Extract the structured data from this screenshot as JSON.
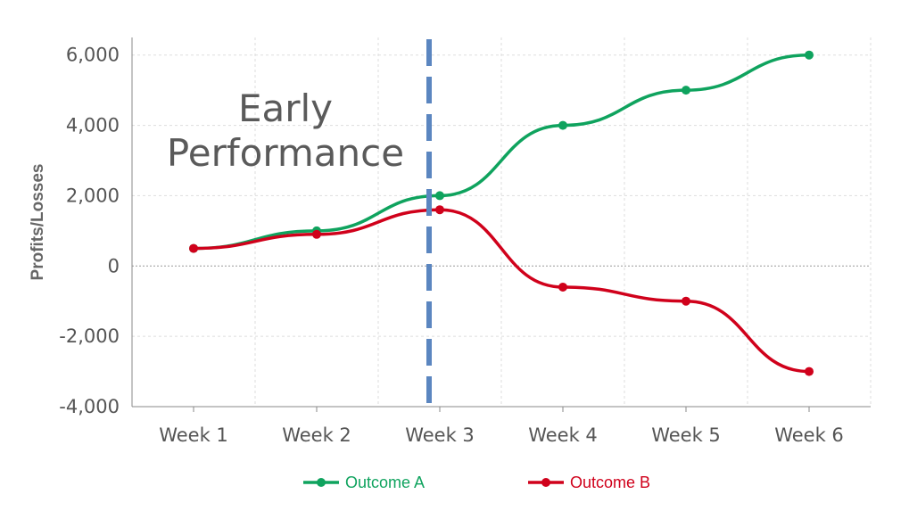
{
  "chart_data": {
    "type": "line",
    "categories": [
      "Week 1",
      "Week 2",
      "Week 3",
      "Week 4",
      "Week 5",
      "Week 6"
    ],
    "series": [
      {
        "name": "Outcome A",
        "color": "#0fa35e",
        "values": [
          500,
          1000,
          2000,
          4000,
          5000,
          6000
        ]
      },
      {
        "name": "Outcome B",
        "color": "#d0011b",
        "values": [
          500,
          900,
          1600,
          -600,
          -1000,
          -3000
        ]
      }
    ],
    "ylabel": "Profits/Losses",
    "ylim": [
      -4000,
      6500
    ],
    "yticks": [
      -4000,
      -2000,
      0,
      2000,
      4000,
      6000
    ],
    "ytick_labels": [
      "-4,000",
      "-2,000",
      "0",
      "2,000",
      "4,000",
      "6,000"
    ],
    "grid": true,
    "legend": "bottom-center",
    "annotation": {
      "lines": [
        "Early",
        "Performance"
      ],
      "divider_at": "Week 3",
      "divider_color": "#5b86c0"
    }
  }
}
